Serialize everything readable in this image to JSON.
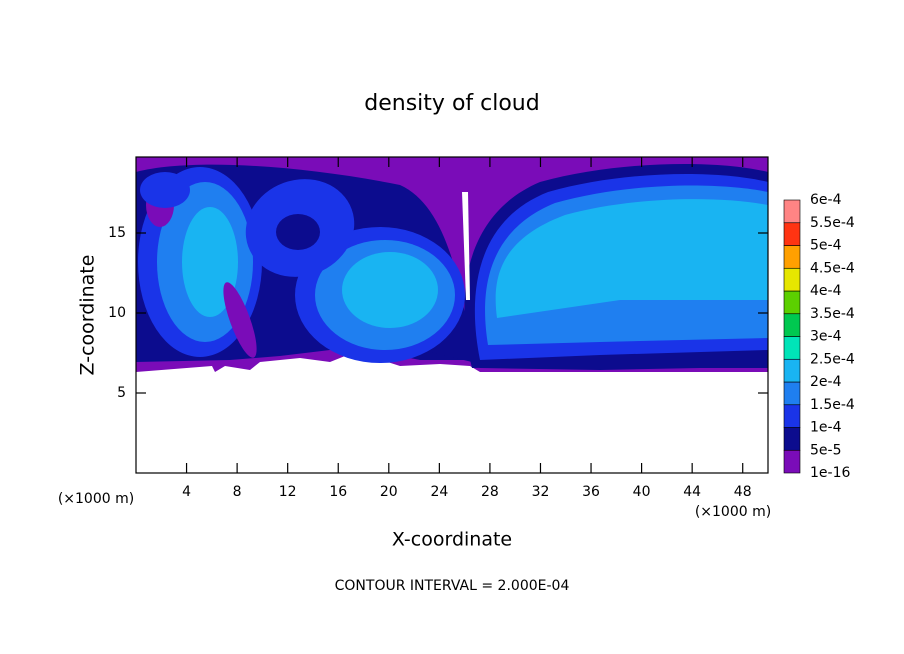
{
  "chart_data": {
    "type": "contour",
    "title": "density of cloud",
    "xlabel": "X-coordinate",
    "ylabel": "Z-coordinate",
    "x_unit_left": "(×1000 m)",
    "x_unit_right": "(×1000 m)",
    "note": "CONTOUR INTERVAL = 2.000E-04",
    "xlim": [
      0,
      50
    ],
    "xticks": [
      4,
      8,
      12,
      16,
      20,
      24,
      28,
      32,
      36,
      40,
      44,
      48
    ],
    "ylim": [
      0,
      19.75
    ],
    "yticks": [
      5,
      10,
      15
    ],
    "colorbar": {
      "clim": [
        1e-16,
        0.0006
      ],
      "ticks": [
        {
          "value": 1e-16,
          "label": "1e-16"
        },
        {
          "value": 5e-05,
          "label": "5e-5"
        },
        {
          "value": 0.0001,
          "label": "1e-4"
        },
        {
          "value": 0.00015,
          "label": "1.5e-4"
        },
        {
          "value": 0.0002,
          "label": "2e-4"
        },
        {
          "value": 0.00025,
          "label": "2.5e-4"
        },
        {
          "value": 0.0003,
          "label": "3e-4"
        },
        {
          "value": 0.00035,
          "label": "3.5e-4"
        },
        {
          "value": 0.0004,
          "label": "4e-4"
        },
        {
          "value": 0.00045,
          "label": "4.5e-4"
        },
        {
          "value": 0.0005,
          "label": "5e-4"
        },
        {
          "value": 0.00055,
          "label": "5.5e-4"
        },
        {
          "value": 0.0006,
          "label": "6e-4"
        }
      ],
      "colors": [
        "#7a0cb8",
        "#0c0c8e",
        "#1a34e8",
        "#1f7ff0",
        "#19b4f2",
        "#00e4b8",
        "#00c850",
        "#5cd000",
        "#e6e600",
        "#ffa000",
        "#ff3412",
        "#ff8484"
      ]
    }
  }
}
